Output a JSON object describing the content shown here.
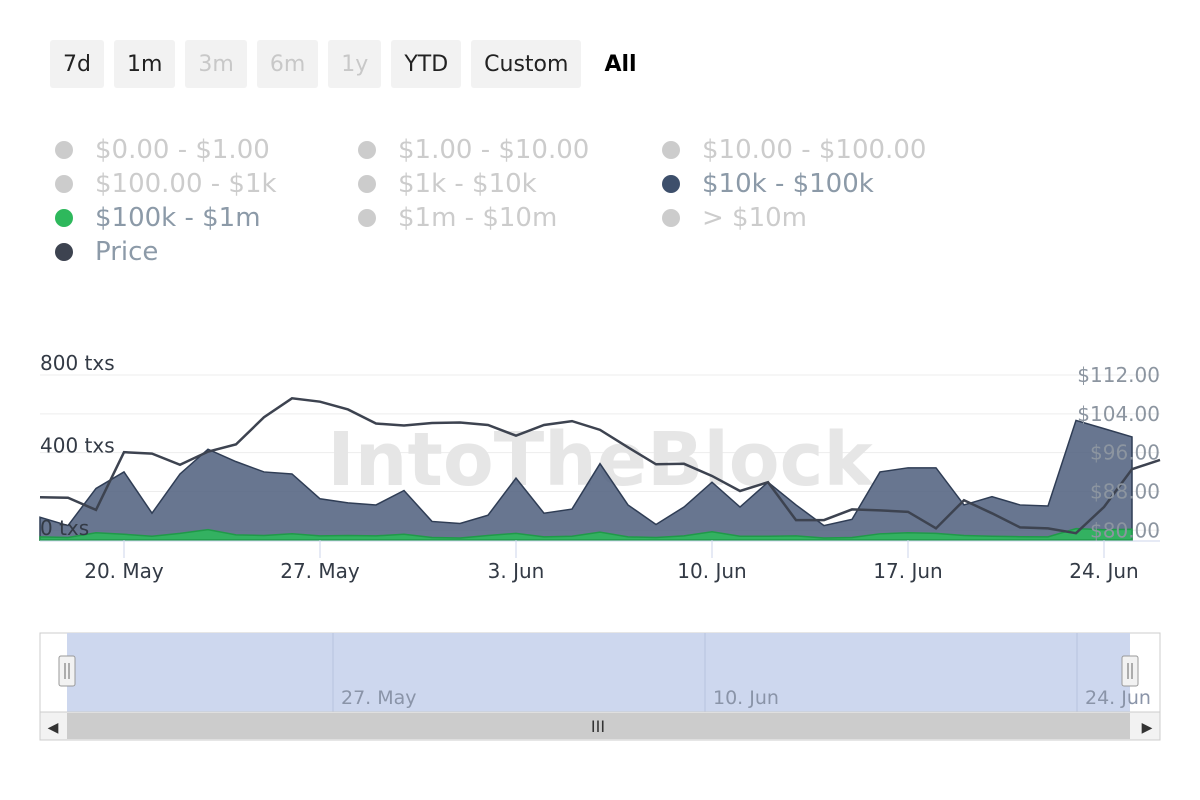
{
  "range_selector": {
    "buttons": [
      {
        "label": "7d",
        "state": "normal"
      },
      {
        "label": "1m",
        "state": "normal"
      },
      {
        "label": "3m",
        "state": "disabled"
      },
      {
        "label": "6m",
        "state": "disabled"
      },
      {
        "label": "1y",
        "state": "disabled"
      },
      {
        "label": "YTD",
        "state": "normal"
      },
      {
        "label": "Custom",
        "state": "normal"
      },
      {
        "label": "All",
        "state": "active"
      }
    ]
  },
  "legend": [
    {
      "label": "$0.00 - $1.00",
      "color": "#cccccc",
      "visible": false
    },
    {
      "label": "$1.00 - $10.00",
      "color": "#cccccc",
      "visible": false
    },
    {
      "label": "$10.00 - $100.00",
      "color": "#cccccc",
      "visible": false
    },
    {
      "label": "$100.00 - $1k",
      "color": "#cccccc",
      "visible": false
    },
    {
      "label": "$1k - $10k",
      "color": "#cccccc",
      "visible": false
    },
    {
      "label": "$10k - $100k",
      "color": "#3d4f6b",
      "visible": true
    },
    {
      "label": "$100k - $1m",
      "color": "#2eb85c",
      "visible": true
    },
    {
      "label": "$1m - $10m",
      "color": "#cccccc",
      "visible": false
    },
    {
      "label": "> $10m",
      "color": "#cccccc",
      "visible": false
    },
    {
      "label": "Price",
      "color": "#3d4350",
      "visible": true
    }
  ],
  "watermark": "IntoTheBlock",
  "chart_data": {
    "type": "area",
    "left_axis": {
      "ticks": [
        {
          "value": 0,
          "label": "0 txs"
        },
        {
          "value": 400,
          "label": "400 txs"
        },
        {
          "value": 800,
          "label": "800 txs"
        }
      ],
      "ylim": [
        0,
        800
      ]
    },
    "right_axis": {
      "ticks": [
        {
          "value": 80,
          "label": "$80.00"
        },
        {
          "value": 88,
          "label": "$88.00"
        },
        {
          "value": 96,
          "label": "$96.00"
        },
        {
          "value": 104,
          "label": "$104.00"
        },
        {
          "value": 112,
          "label": "$112.00"
        }
      ],
      "ylim": [
        78,
        112
      ]
    },
    "x_axis": {
      "ticks": [
        "20. May",
        "27. May",
        "3. Jun",
        "10. Jun",
        "17. Jun",
        "24. Jun"
      ]
    },
    "x_range": [
      "2024-05-17",
      "2024-06-25"
    ],
    "series": [
      {
        "name": "$10k - $100k",
        "axis": "left",
        "color": "#4d5e7d",
        "values": [
          [
            0,
            110
          ],
          [
            1,
            70
          ],
          [
            2,
            250
          ],
          [
            3,
            330
          ],
          [
            4,
            130
          ],
          [
            5,
            320
          ],
          [
            6,
            440
          ],
          [
            7,
            380
          ],
          [
            8,
            330
          ],
          [
            9,
            320
          ],
          [
            10,
            200
          ],
          [
            11,
            180
          ],
          [
            12,
            170
          ],
          [
            13,
            240
          ],
          [
            14,
            90
          ],
          [
            15,
            80
          ],
          [
            16,
            120
          ],
          [
            17,
            300
          ],
          [
            18,
            130
          ],
          [
            19,
            150
          ],
          [
            20,
            370
          ],
          [
            21,
            170
          ],
          [
            22,
            75
          ],
          [
            23,
            160
          ],
          [
            24,
            280
          ],
          [
            25,
            160
          ],
          [
            26,
            280
          ],
          [
            27,
            170
          ],
          [
            28,
            70
          ],
          [
            29,
            100
          ],
          [
            30,
            330
          ],
          [
            31,
            350
          ],
          [
            32,
            350
          ],
          [
            33,
            170
          ],
          [
            34,
            210
          ],
          [
            35,
            170
          ],
          [
            36,
            165
          ],
          [
            37,
            580
          ],
          [
            38,
            540
          ],
          [
            39,
            500
          ]
        ]
      },
      {
        "name": "$100k - $1m",
        "axis": "left",
        "color": "#2eb85c",
        "values": [
          [
            0,
            15
          ],
          [
            1,
            12
          ],
          [
            2,
            35
          ],
          [
            3,
            28
          ],
          [
            4,
            18
          ],
          [
            5,
            32
          ],
          [
            6,
            50
          ],
          [
            7,
            25
          ],
          [
            8,
            22
          ],
          [
            9,
            30
          ],
          [
            10,
            20
          ],
          [
            11,
            22
          ],
          [
            12,
            20
          ],
          [
            13,
            28
          ],
          [
            14,
            12
          ],
          [
            15,
            10
          ],
          [
            16,
            22
          ],
          [
            17,
            32
          ],
          [
            18,
            15
          ],
          [
            19,
            18
          ],
          [
            20,
            38
          ],
          [
            21,
            15
          ],
          [
            22,
            12
          ],
          [
            23,
            20
          ],
          [
            24,
            40
          ],
          [
            25,
            18
          ],
          [
            26,
            18
          ],
          [
            27,
            20
          ],
          [
            28,
            10
          ],
          [
            29,
            12
          ],
          [
            30,
            30
          ],
          [
            31,
            35
          ],
          [
            32,
            32
          ],
          [
            33,
            22
          ],
          [
            34,
            18
          ],
          [
            35,
            16
          ],
          [
            36,
            15
          ],
          [
            37,
            55
          ],
          [
            38,
            50
          ],
          [
            39,
            52
          ]
        ]
      },
      {
        "name": "Price",
        "axis": "right",
        "color": "#3d4350",
        "values": [
          [
            0,
            86.8
          ],
          [
            1,
            86.7
          ],
          [
            2,
            84.2
          ],
          [
            3,
            96.1
          ],
          [
            4,
            95.8
          ],
          [
            5,
            93.5
          ],
          [
            6,
            96.2
          ],
          [
            7,
            97.7
          ],
          [
            8,
            103.3
          ],
          [
            9,
            107.2
          ],
          [
            10,
            106.5
          ],
          [
            11,
            104.9
          ],
          [
            12,
            102.0
          ],
          [
            13,
            101.6
          ],
          [
            14,
            102.1
          ],
          [
            15,
            102.2
          ],
          [
            16,
            101.7
          ],
          [
            17,
            99.5
          ],
          [
            18,
            101.7
          ],
          [
            19,
            102.5
          ],
          [
            20,
            100.7
          ],
          [
            21,
            97.1
          ],
          [
            22,
            93.6
          ],
          [
            23,
            93.7
          ],
          [
            24,
            91.2
          ],
          [
            25,
            88.1
          ],
          [
            26,
            89.9
          ],
          [
            27,
            82.1
          ],
          [
            28,
            82.1
          ],
          [
            29,
            84.3
          ],
          [
            30,
            84.1
          ],
          [
            31,
            83.8
          ],
          [
            32,
            80.4
          ],
          [
            33,
            86.2
          ],
          [
            34,
            83.5
          ],
          [
            35,
            80.6
          ],
          [
            36,
            80.4
          ],
          [
            37,
            79.4
          ],
          [
            38,
            84.8
          ],
          [
            39,
            92.6
          ],
          [
            40,
            94.5
          ]
        ]
      }
    ]
  },
  "navigator": {
    "labels": [
      "27. May",
      "10. Jun",
      "24. Jun"
    ],
    "selection": [
      0.0,
      1.0
    ],
    "scroll_grip": "III",
    "arrow_left": "◀",
    "arrow_right": "▶"
  }
}
